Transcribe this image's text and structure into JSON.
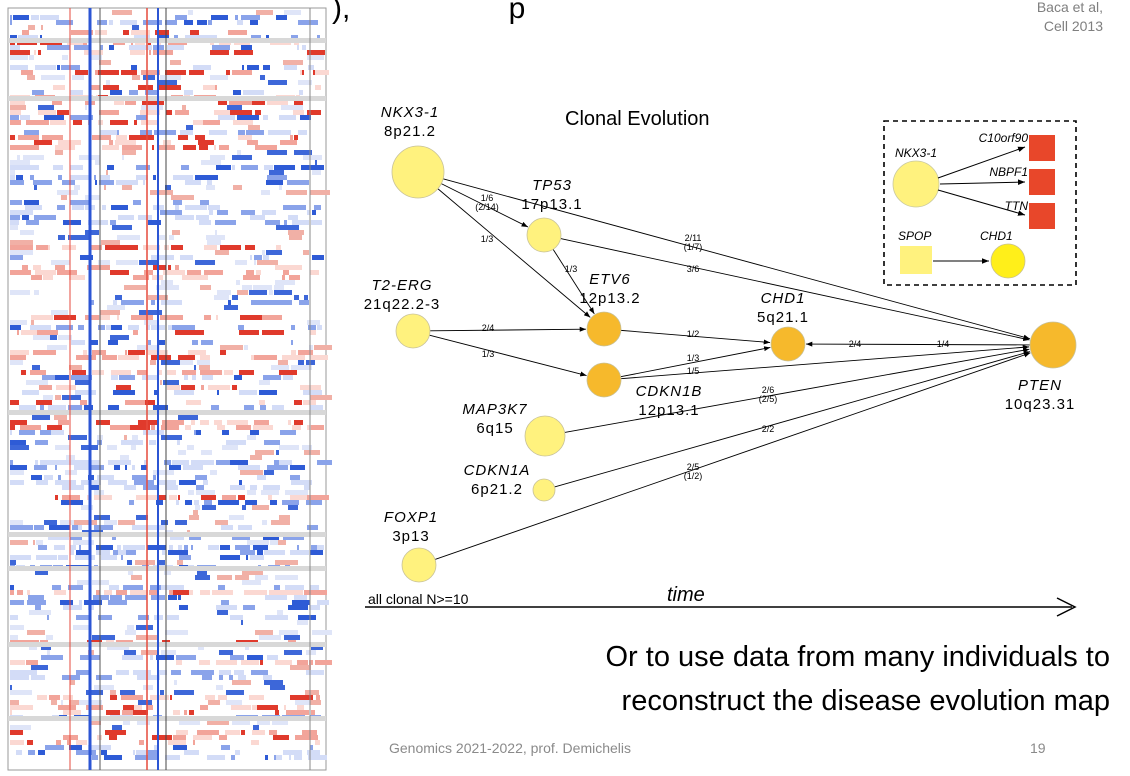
{
  "title_fragment": "), ",
  "title_fragment2": "p",
  "citation": {
    "line1": "Baca et al,",
    "line2": "Cell 2013"
  },
  "diagram_title": "Clonal Evolution",
  "nodes": [
    {
      "id": "nkx",
      "name": "NKX3-1",
      "locus": "8p21.2",
      "color": "#fff27e"
    },
    {
      "id": "tp53",
      "name": "TP53",
      "locus": "17p13.1",
      "color": "#fff27e"
    },
    {
      "id": "t2erg",
      "name": "T2-ERG",
      "locus": "21q22.2-3",
      "color": "#fff27e"
    },
    {
      "id": "etv6",
      "name": "ETV6",
      "locus": "12p13.2",
      "color": "#f6b92c"
    },
    {
      "id": "chd1",
      "name": "CHD1",
      "locus": "5q21.1",
      "color": "#f6b92c"
    },
    {
      "id": "cdkn1b",
      "name": "CDKN1B",
      "locus": "12p13.1",
      "color": "#f6b92c"
    },
    {
      "id": "map3k7",
      "name": "MAP3K7",
      "locus": "6q15",
      "color": "#fff27e"
    },
    {
      "id": "cdkn1a",
      "name": "CDKN1A",
      "locus": "6p21.2",
      "color": "#fff27e"
    },
    {
      "id": "foxp1",
      "name": "FOXP1",
      "locus": "3p13",
      "color": "#fff27e"
    },
    {
      "id": "pten",
      "name": "PTEN",
      "locus": "10q23.31",
      "color": "#f6b92c"
    }
  ],
  "edges": [
    {
      "from": "nkx",
      "to": "tp53",
      "label": "1/6",
      "label2": "(2/14)"
    },
    {
      "from": "nkx",
      "to": "etv6",
      "label": "1/3",
      "label2": ""
    },
    {
      "from": "nkx",
      "to": "pten",
      "label": "2/11",
      "label2": "(1/7)"
    },
    {
      "from": "tp53",
      "to": "etv6",
      "label": "1/3",
      "label2": ""
    },
    {
      "from": "tp53",
      "to": "pten",
      "label": "3/6",
      "label2": ""
    },
    {
      "from": "t2erg",
      "to": "etv6",
      "label": "2/4",
      "label2": ""
    },
    {
      "from": "t2erg",
      "to": "cdkn1b",
      "label": "1/3",
      "label2": ""
    },
    {
      "from": "etv6",
      "to": "chd1",
      "label": "1/2",
      "label2": ""
    },
    {
      "from": "cdkn1b",
      "to": "chd1",
      "label": "1/3",
      "label2": ""
    },
    {
      "from": "pten",
      "to": "chd1",
      "label": "2/4",
      "label2": "",
      "label_b": "1/4"
    },
    {
      "from": "cdkn1b",
      "to": "pten",
      "label": "1/5",
      "label2": ""
    },
    {
      "from": "map3k7",
      "to": "pten",
      "label": "2/6",
      "label2": "(2/5)"
    },
    {
      "from": "cdkn1a",
      "to": "pten",
      "label": "2/2",
      "label2": ""
    },
    {
      "from": "foxp1",
      "to": "pten",
      "label": "2/5",
      "label2": "(1/2)"
    }
  ],
  "legend": {
    "nkx": "NKX3-1",
    "targets": [
      "C10orf90",
      "NBPF1",
      "TTN"
    ],
    "spop": "SPOP",
    "chd1": "CHD1",
    "colors": {
      "clonal_yellow": "#fff27e",
      "bright_yellow": "#ffef1a",
      "red": "#e8472a",
      "orange": "#f6b92c"
    }
  },
  "axis": {
    "left_label": "all clonal N>=10",
    "time_label": "time"
  },
  "caption": {
    "line1": "Or to use data from many individuals to",
    "line2": "reconstruct the disease evolution map"
  },
  "footer": {
    "course": "Genomics 2021-2022, prof. Demichelis",
    "page": "19"
  }
}
